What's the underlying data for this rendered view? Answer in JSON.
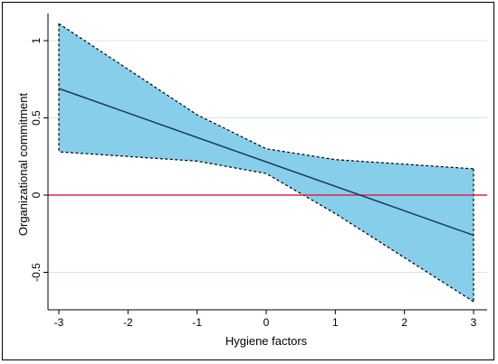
{
  "chart_data": {
    "type": "line",
    "title": "",
    "xlabel": "Hygiene factors",
    "ylabel": "Organizational commitment",
    "xlim": [
      -3,
      3
    ],
    "ylim": [
      -0.7,
      1.12
    ],
    "x_ticks": [
      -3,
      -2,
      -1,
      0,
      1,
      2,
      3
    ],
    "y_ticks": [
      1,
      0.5,
      0,
      -0.5
    ],
    "x_tick_labels": [
      "-3",
      "-2",
      "-1",
      "0",
      "1",
      "2",
      "3"
    ],
    "y_tick_labels": [
      "1",
      "0.5",
      "0",
      "-0.5"
    ],
    "grid": "horizontal",
    "reference_line": {
      "y": 0,
      "color": "#d8254a"
    },
    "series": [
      {
        "type": "line",
        "color": "#1b3a57",
        "x": [
          -3,
          3
        ],
        "y": [
          0.69,
          -0.26
        ]
      },
      {
        "type": "confidence_band",
        "fill": "#87ceeb",
        "edge_style": "dashed",
        "x": [
          -3,
          -1,
          0,
          1,
          3
        ],
        "upper": [
          1.11,
          0.52,
          0.3,
          0.23,
          0.17
        ],
        "lower": [
          0.28,
          0.22,
          0.14,
          -0.12,
          -0.69
        ]
      }
    ]
  }
}
